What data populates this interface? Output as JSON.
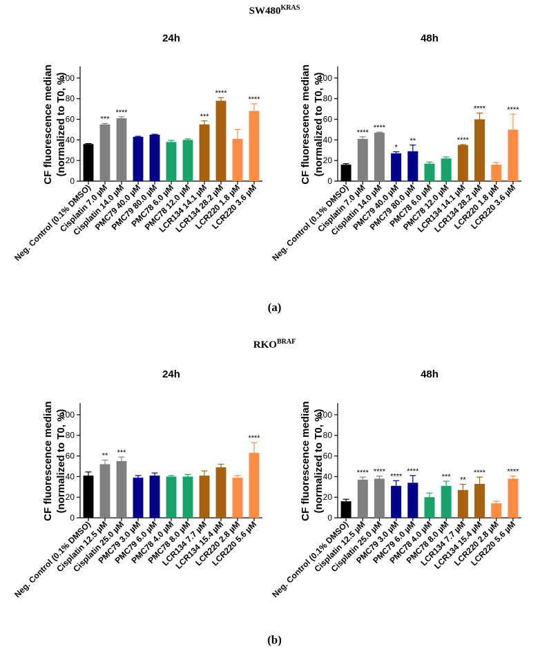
{
  "sections": [
    {
      "title_main": "SW480",
      "title_sup": "KRAS",
      "label": "(a)"
    },
    {
      "title_main": "RKO",
      "title_sup": "BRAF",
      "label": "(b)"
    }
  ],
  "colors": {
    "black": "#000000",
    "grey": "#808080",
    "navy": "#00008b",
    "green": "#18a36a",
    "brown": "#a8620f",
    "orange": "#ff8c42"
  },
  "chart_data": [
    {
      "type": "bar",
      "title": "24h",
      "ylabel": "CF fluorescence median (normalized to T0, %)",
      "ylabel_lines": [
        "CF fluorescence median",
        "(normalized to T0, %)"
      ],
      "ylim": [
        0,
        110
      ],
      "yticks": [
        0,
        20,
        40,
        60,
        80,
        100
      ],
      "categories": [
        "Neg. Control (0.1% DMSO)",
        "Cisplatin 7.0 µM",
        "Cisplatin 14.0 µM",
        "PMC79 40.0 µM",
        "PMC79 80.0 µM",
        "PMC78 6.0 µM",
        "PMC78 12.0 µM",
        "LCR134 14.1 µM",
        "LCR134 28.2 µM",
        "LCR220 1.8 µM",
        "LCR220 3.6 µM"
      ],
      "values": [
        36,
        55,
        61,
        43,
        45,
        38,
        40,
        55,
        78,
        41,
        68
      ],
      "errors": [
        0.5,
        1,
        1.5,
        0.5,
        0.5,
        1.5,
        1,
        3.5,
        3,
        9,
        7
      ],
      "significance": [
        "",
        "***",
        "****",
        "",
        "",
        "",
        "",
        "***",
        "****",
        "",
        "****"
      ],
      "colors": [
        "black",
        "grey",
        "grey",
        "navy",
        "navy",
        "green",
        "green",
        "brown",
        "brown",
        "orange",
        "orange"
      ]
    },
    {
      "type": "bar",
      "title": "48h",
      "ylabel": "CF fluorescence median (normalized to T0, %)",
      "ylabel_lines": [
        "CF fluorescence median",
        "(normalized to T0, %)"
      ],
      "ylim": [
        0,
        110
      ],
      "yticks": [
        0,
        20,
        40,
        60,
        80,
        100
      ],
      "categories": [
        "Neg. Control (0.1% DMSO)",
        "Cisplatin 7.0 µM",
        "Cisplatin 14.0 µM",
        "PMC79 40.0 µM",
        "PMC79 80.0 µM",
        "PMC78 6.0 µM",
        "PMC78 12.0 µM",
        "LCR134 14.1 µM",
        "LCR134 28.2 µM",
        "LCR220 1.8 µM",
        "LCR220 3.6 µM"
      ],
      "values": [
        16,
        41,
        47,
        27,
        29,
        17,
        22,
        35,
        60,
        16,
        50
      ],
      "errors": [
        1,
        2,
        0.5,
        1.5,
        6,
        1.5,
        1.5,
        0.5,
        6,
        2,
        15
      ],
      "significance": [
        "",
        "****",
        "****",
        "*",
        "**",
        "",
        "",
        "****",
        "****",
        "",
        "****"
      ],
      "colors": [
        "black",
        "grey",
        "grey",
        "navy",
        "navy",
        "green",
        "green",
        "brown",
        "brown",
        "orange",
        "orange"
      ]
    },
    {
      "type": "bar",
      "title": "24h",
      "ylabel": "CF fluorescence median (normalized to T0, %)",
      "ylabel_lines": [
        "CF fluorescence median",
        "(normalized to T0, %)"
      ],
      "ylim": [
        0,
        110
      ],
      "yticks": [
        0,
        20,
        40,
        60,
        80,
        100
      ],
      "categories": [
        "Neg. Control (0.1% DMSO)",
        "Cisplatin 12.5 µM",
        "Cisplatin 25.0 µM",
        "PMC79 3.0 µM",
        "PMC79 6.0 µM",
        "PMC78 4.0 µM",
        "PMC78 8.0 µM",
        "LCR134 7.7 µM",
        "LCR134 15.4 µM",
        "LCR220 2.8 µM",
        "LCR220 5.6 µM"
      ],
      "values": [
        41,
        52,
        55,
        39,
        41,
        40,
        40,
        41,
        49,
        39,
        63
      ],
      "errors": [
        3.5,
        4,
        4,
        2,
        2.5,
        1,
        2,
        4.5,
        3,
        2,
        10
      ],
      "significance": [
        "",
        "**",
        "***",
        "",
        "",
        "",
        "",
        "",
        "",
        "",
        "****"
      ],
      "colors": [
        "black",
        "grey",
        "grey",
        "navy",
        "navy",
        "green",
        "green",
        "brown",
        "brown",
        "orange",
        "orange"
      ]
    },
    {
      "type": "bar",
      "title": "48h",
      "ylabel": "CF fluorescence median (normalized to T0, %)",
      "ylabel_lines": [
        "CF fluorescence median",
        "(normalized to T0, %)"
      ],
      "ylim": [
        0,
        110
      ],
      "yticks": [
        0,
        20,
        40,
        60,
        80,
        100
      ],
      "categories": [
        "Neg. Control (0.1% DMSO)",
        "Cisplatin 12.5 µM",
        "Cisplatin 25.0 µM",
        "PMC79 3.0 µM",
        "PMC79 6.0 µM",
        "PMC78 4.0 µM",
        "PMC78 8.0 µM",
        "LCR134 7.7 µM",
        "LCR134 15.4 µM",
        "LCR220 2.8 µM",
        "LCR220 5.6 µM"
      ],
      "values": [
        16,
        37,
        38,
        31,
        34,
        20,
        31,
        27,
        33,
        14,
        38
      ],
      "errors": [
        2,
        2.5,
        2.5,
        5,
        7,
        4,
        4.5,
        5.5,
        6.5,
        2,
        2.5
      ],
      "significance": [
        "",
        "****",
        "****",
        "****",
        "****",
        "",
        "***",
        "**",
        "****",
        "",
        "****"
      ],
      "colors": [
        "black",
        "grey",
        "grey",
        "navy",
        "navy",
        "green",
        "green",
        "brown",
        "brown",
        "orange",
        "orange"
      ]
    }
  ]
}
